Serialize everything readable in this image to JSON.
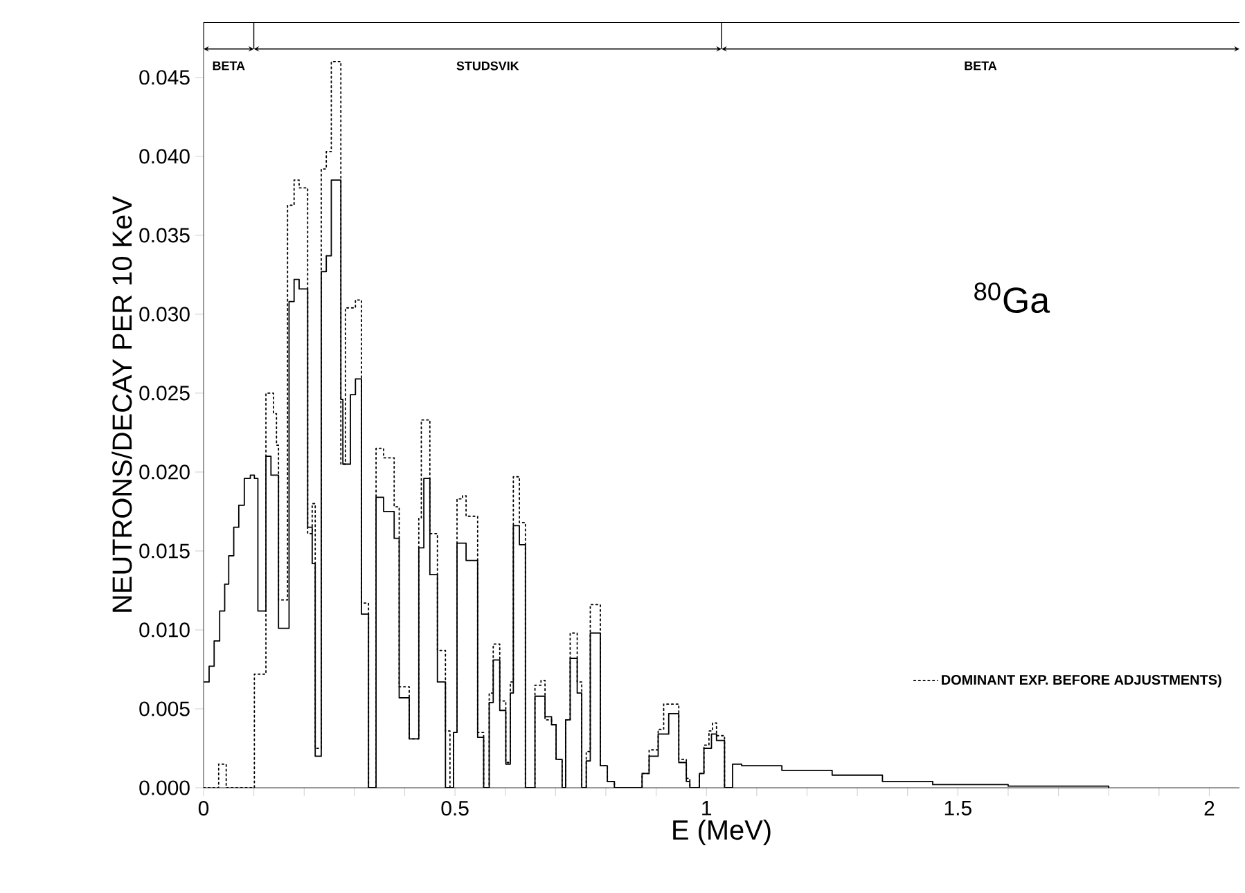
{
  "chart_data": {
    "type": "step",
    "xlabel": "E  (MeV)",
    "ylabel": "NEUTRONS/DECAY PER 10 KeV",
    "xlim": [
      0,
      2.06
    ],
    "ylim": [
      0,
      0.0485
    ],
    "xticks": [
      {
        "value": 0,
        "label": "0"
      },
      {
        "value": 0.1,
        "label": null
      },
      {
        "value": 0.2,
        "label": null
      },
      {
        "value": 0.3,
        "label": null
      },
      {
        "value": 0.4,
        "label": null
      },
      {
        "value": 0.5,
        "label": "0.5"
      },
      {
        "value": 0.6,
        "label": null
      },
      {
        "value": 0.7,
        "label": null
      },
      {
        "value": 0.8,
        "label": null
      },
      {
        "value": 0.9,
        "label": null
      },
      {
        "value": 1,
        "label": "1"
      },
      {
        "value": 1.1,
        "label": null
      },
      {
        "value": 1.2,
        "label": null
      },
      {
        "value": 1.3,
        "label": null
      },
      {
        "value": 1.4,
        "label": null
      },
      {
        "value": 1.5,
        "label": "1.5"
      },
      {
        "value": 1.6,
        "label": null
      },
      {
        "value": 1.7,
        "label": null
      },
      {
        "value": 1.8,
        "label": null
      },
      {
        "value": 1.9,
        "label": null
      },
      {
        "value": 2,
        "label": "2"
      }
    ],
    "yticks": [
      {
        "value": 0,
        "label": "0.000"
      },
      {
        "value": 0.005,
        "label": "0.005"
      },
      {
        "value": 0.01,
        "label": "0.010"
      },
      {
        "value": 0.015,
        "label": "0.015"
      },
      {
        "value": 0.02,
        "label": "0.020"
      },
      {
        "value": 0.025,
        "label": "0.025"
      },
      {
        "value": 0.03,
        "label": "0.030"
      },
      {
        "value": 0.035,
        "label": "0.035"
      },
      {
        "value": 0.04,
        "label": "0.040"
      },
      {
        "value": 0.045,
        "label": "0.045"
      }
    ],
    "legend": "right",
    "series": [
      {
        "color": "#000000",
        "line_style": "solid",
        "x": [
          0,
          0.011,
          0.021,
          0.032,
          0.042,
          0.05,
          0.06,
          0.07,
          0.081,
          0.093,
          0.101,
          0.108,
          0.124,
          0.134,
          0.149,
          0.17,
          0.18,
          0.19,
          0.207,
          0.216,
          0.222,
          0.234,
          0.244,
          0.254,
          0.273,
          0.277,
          0.292,
          0.302,
          0.314,
          0.328,
          0.343,
          0.358,
          0.379,
          0.389,
          0.409,
          0.428,
          0.438,
          0.45,
          0.465,
          0.481,
          0.497,
          0.504,
          0.522,
          0.545,
          0.557,
          0.568,
          0.576,
          0.589,
          0.601,
          0.61,
          0.616,
          0.628,
          0.64,
          0.659,
          0.679,
          0.692,
          0.701,
          0.713,
          0.72,
          0.729,
          0.743,
          0.752,
          0.761,
          0.769,
          0.789,
          0.803,
          0.817,
          0.872,
          0.886,
          0.904,
          0.925,
          0.945,
          0.96,
          0.967,
          0.986,
          0.995,
          1.01,
          1.02,
          1.036,
          1.052,
          1.07,
          1.15,
          1.25,
          1.35,
          1.45,
          1.6,
          1.8
        ],
        "values": [
          0.0067,
          0.0077,
          0.0093,
          0.0112,
          0.0129,
          0.0147,
          0.0165,
          0.0179,
          0.0196,
          0.0198,
          0.0196,
          0.0112,
          0.021,
          0.0198,
          0.0101,
          0.0308,
          0.0322,
          0.0316,
          0.0165,
          0.0142,
          0.002,
          0.0327,
          0.0337,
          0.0385,
          0.0246,
          0.0205,
          0.0249,
          0.0259,
          0.011,
          0,
          0.0184,
          0.0175,
          0.0158,
          0.0057,
          0.0031,
          0.0152,
          0.0196,
          0.0135,
          0.0067,
          0,
          0.0035,
          0.0155,
          0.0144,
          0.0032,
          0,
          0.0054,
          0.0081,
          0.0049,
          0.0015,
          0.006,
          0.0166,
          0.0154,
          0,
          0.0058,
          0.0045,
          0.004,
          0.0018,
          0,
          0.0043,
          0.0082,
          0.006,
          0,
          0.0017,
          0.0098,
          0.0014,
          0.0004,
          0,
          0.0009,
          0.002,
          0.0034,
          0.0047,
          0.0016,
          0.0004,
          0,
          0.0009,
          0.0025,
          0.0034,
          0.003,
          0,
          0.0015,
          0.0014,
          0.0011,
          0.0008,
          0.0004,
          0.0002,
          0.0001,
          0
        ]
      },
      {
        "name": "DOMINANT EXP. BEFORE ADJUSTMENTS)",
        "color": "#000000",
        "line_style": "dotted",
        "x": [
          0,
          0.03,
          0.045,
          0.101,
          0.124,
          0.139,
          0.145,
          0.149,
          0.167,
          0.18,
          0.19,
          0.207,
          0.216,
          0.222,
          0.234,
          0.244,
          0.254,
          0.273,
          0.282,
          0.302,
          0.314,
          0.328,
          0.343,
          0.358,
          0.379,
          0.389,
          0.409,
          0.428,
          0.433,
          0.45,
          0.465,
          0.481,
          0.49,
          0.497,
          0.504,
          0.515,
          0.522,
          0.545,
          0.557,
          0.568,
          0.576,
          0.589,
          0.601,
          0.61,
          0.616,
          0.628,
          0.64,
          0.659,
          0.671,
          0.679,
          0.692,
          0.701,
          0.713,
          0.72,
          0.729,
          0.743,
          0.752,
          0.761,
          0.769,
          0.789,
          0.803,
          0.817,
          0.872,
          0.886,
          0.904,
          0.915,
          0.945,
          0.96,
          0.967,
          0.986,
          0.995,
          1.005,
          1.012,
          1.02,
          1.036,
          1.052
        ],
        "values": [
          0,
          0.0015,
          0,
          0.0072,
          0.025,
          0.0237,
          0.0217,
          0.0119,
          0.0369,
          0.0385,
          0.038,
          0.0161,
          0.018,
          0.0025,
          0.0392,
          0.0403,
          0.046,
          0.0205,
          0.0304,
          0.0309,
          0.0117,
          0,
          0.0215,
          0.0209,
          0.0178,
          0.0064,
          0.0031,
          0.0171,
          0.0233,
          0.0161,
          0.0087,
          0.0036,
          0,
          0.0035,
          0.0183,
          0.0185,
          0.0172,
          0.0035,
          0,
          0.006,
          0.0091,
          0.0055,
          0.0016,
          0.0067,
          0.0197,
          0.0168,
          0,
          0.0065,
          0.0068,
          0.0043,
          0.004,
          0.0018,
          0,
          0.0043,
          0.0098,
          0.0067,
          0,
          0.0023,
          0.0116,
          0.0014,
          0.0004,
          0,
          0.0009,
          0.0024,
          0.0037,
          0.0053,
          0.0018,
          0.0006,
          0,
          0.0009,
          0.0027,
          0.0036,
          0.0041,
          0.0033,
          0,
          0
        ]
      }
    ],
    "annotations": [
      "BETA",
      "STUDSVIK",
      "BETA",
      "$^{80}$Ga"
    ]
  }
}
